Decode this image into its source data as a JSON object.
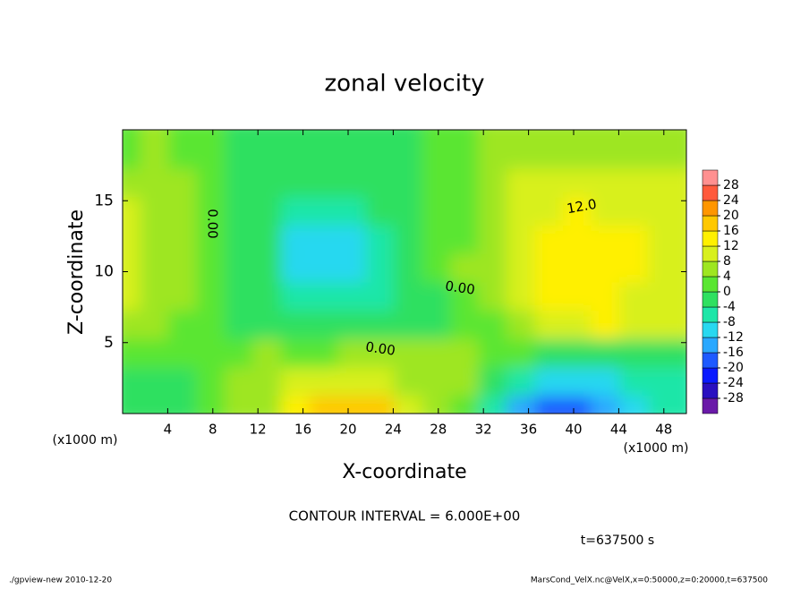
{
  "chart_data": {
    "type": "contour",
    "title": "zonal velocity",
    "x_label": "X-coordinate",
    "y_label": "Z-coordinate",
    "x_unit": "(x1000 m)",
    "subtitle": "CONTOUR INTERVAL = 6.000E+00",
    "time_label": "t=637500 s",
    "footer_left": "./gpview-new  2010-12-20",
    "footer_right": "MarsCond_VelX.nc@VelX,x=0:50000,z=0:20000,t=637500",
    "contour_labels": [
      "12.0",
      "0.00",
      "0.00",
      "0.00"
    ],
    "xlim": [
      0,
      50
    ],
    "ylim": [
      0,
      20
    ],
    "xticks": [
      4,
      8,
      12,
      16,
      20,
      24,
      28,
      32,
      36,
      40,
      44,
      48
    ],
    "yticks": [
      5,
      10,
      15
    ],
    "x": [
      1.25,
      3.75,
      6.25,
      8.75,
      11.25,
      13.75,
      16.25,
      18.75,
      21.25,
      23.75,
      26.25,
      28.75,
      31.25,
      33.75,
      36.25,
      38.75,
      41.25,
      43.75,
      46.25,
      48.75
    ],
    "y": [
      1,
      3,
      5,
      7,
      9,
      11,
      13,
      15,
      17,
      19
    ],
    "z": [
      [
        -2,
        -4,
        -2,
        0,
        4,
        6,
        14,
        18,
        18,
        16,
        8,
        4,
        2,
        -6,
        -14,
        -20,
        -18,
        -14,
        -12,
        -8
      ],
      [
        -3,
        -4,
        -1,
        1,
        4,
        6,
        8,
        10,
        10,
        8,
        6,
        6,
        4,
        -2,
        -6,
        -10,
        -10,
        -10,
        -8,
        -6
      ],
      [
        2,
        2,
        0,
        2,
        2,
        4,
        2,
        2,
        4,
        6,
        6,
        6,
        4,
        2,
        0,
        -2,
        -2,
        -2,
        -2,
        -2
      ],
      [
        6,
        6,
        2,
        0,
        -2,
        -2,
        -2,
        -2,
        -2,
        -2,
        -2,
        -2,
        0,
        2,
        6,
        8,
        10,
        12,
        10,
        8
      ],
      [
        8,
        6,
        4,
        0,
        -2,
        -4,
        -8,
        -8,
        -8,
        -6,
        -4,
        -2,
        0,
        6,
        10,
        14,
        14,
        12,
        10,
        10
      ],
      [
        8,
        6,
        4,
        0,
        -2,
        -4,
        -10,
        -12,
        -10,
        -6,
        -2,
        2,
        4,
        6,
        10,
        14,
        14,
        14,
        12,
        10
      ],
      [
        8,
        6,
        4,
        0,
        -2,
        -4,
        -10,
        -12,
        -10,
        -6,
        -2,
        0,
        2,
        6,
        10,
        14,
        14,
        14,
        12,
        10
      ],
      [
        8,
        6,
        4,
        0,
        -2,
        -4,
        -8,
        -8,
        -6,
        -4,
        -2,
        0,
        2,
        6,
        8,
        10,
        12,
        10,
        10,
        8
      ],
      [
        6,
        6,
        4,
        0,
        -2,
        -4,
        -4,
        -4,
        -4,
        -2,
        -2,
        0,
        2,
        6,
        8,
        8,
        8,
        8,
        8,
        8
      ],
      [
        2,
        4,
        2,
        0,
        -2,
        -2,
        -2,
        -2,
        -2,
        -2,
        -2,
        0,
        2,
        6,
        6,
        6,
        6,
        6,
        6,
        6
      ]
    ],
    "levels": [
      -28,
      -24,
      -20,
      -16,
      -12,
      -8,
      -4,
      0,
      4,
      8,
      12,
      16,
      20,
      24,
      28
    ],
    "colors": [
      "#6a1aa8",
      "#2a10c0",
      "#0a1aff",
      "#1e5aff",
      "#2aa8ff",
      "#28d8f0",
      "#1ee6a8",
      "#2ee060",
      "#5ae632",
      "#9ee620",
      "#d8f01e",
      "#fff000",
      "#ffc800",
      "#ff9600",
      "#ff5a3c",
      "#ff9090"
    ]
  }
}
